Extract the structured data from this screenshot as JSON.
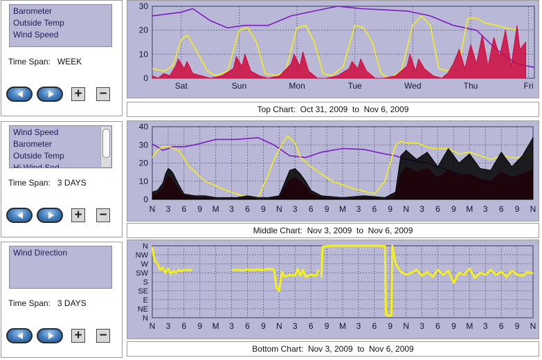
{
  "panels": [
    {
      "items": [
        "Barometer",
        "Outside Temp",
        "Wind Speed"
      ],
      "time_span_label": "Time Span:",
      "time_span_value": "WEEK",
      "has_scrollbar": false
    },
    {
      "items": [
        "Wind Speed",
        "Barometer",
        "Outside Temp",
        "Hi Wind Spd"
      ],
      "time_span_label": "Time Span:",
      "time_span_value": "3 DAYS",
      "has_scrollbar": true
    },
    {
      "items": [
        "Wind Direction"
      ],
      "time_span_label": "Time Span:",
      "time_span_value": "3 DAYS",
      "has_scrollbar": false
    }
  ],
  "buttons": {
    "zoom_in": "+",
    "zoom_out": "−"
  },
  "captions": {
    "top": "Top Chart:  Oct 31, 2009  to  Nov 6, 2009",
    "middle": "Middle Chart:  Nov 3, 2009  to  Nov 6, 2009",
    "bottom": "Bottom Chart:  Nov 3, 2009  to  Nov 6, 2009"
  },
  "colors": {
    "plot_bg": "#b9b8d6",
    "grid": "#5c5a80",
    "barometer": "#7a1bbf",
    "outside_temp": "#f4ef1e",
    "wind_speed": "#cc0a3e",
    "hi_wind": "#000000",
    "wind_dir": "#f4ef1e"
  },
  "chart_data": [
    {
      "id": "top",
      "type": "line",
      "title": "Top Chart:  Oct 31, 2009  to  Nov 6, 2009",
      "xlabel": "",
      "ylabel": "",
      "ylim": [
        0,
        30
      ],
      "xlim": [
        0,
        6.6
      ],
      "yticks": [
        "0",
        "10",
        "20",
        "30"
      ],
      "xticks": [
        {
          "x": 0.5,
          "label": "Sat"
        },
        {
          "x": 1.5,
          "label": "Sun"
        },
        {
          "x": 2.5,
          "label": "Mon"
        },
        {
          "x": 3.5,
          "label": "Tue"
        },
        {
          "x": 4.5,
          "label": "Wed"
        },
        {
          "x": 5.5,
          "label": "Thu"
        },
        {
          "x": 6.5,
          "label": "Fri"
        }
      ],
      "series": [
        {
          "name": "Barometer",
          "color": "#7a1bbf",
          "x": [
            0,
            0.5,
            0.7,
            1.0,
            1.3,
            1.6,
            2.0,
            2.4,
            2.8,
            3.2,
            3.6,
            4.0,
            4.4,
            4.8,
            5.0,
            5.2,
            5.6,
            5.9,
            6.1,
            6.3,
            6.6
          ],
          "y": [
            26,
            27.5,
            29,
            24,
            21,
            22,
            22,
            26,
            28,
            30,
            29,
            28.5,
            28,
            26,
            24,
            22,
            20,
            13,
            9,
            6,
            4.5
          ]
        },
        {
          "name": "Outside Temp",
          "color": "#f4ef1e",
          "x": [
            0,
            0.2,
            0.35,
            0.5,
            0.6,
            0.75,
            0.95,
            1.1,
            1.3,
            1.5,
            1.65,
            1.8,
            1.95,
            2.15,
            2.3,
            2.5,
            2.65,
            2.8,
            2.95,
            3.1,
            3.3,
            3.5,
            3.65,
            3.8,
            3.95,
            4.1,
            4.3,
            4.5,
            4.65,
            4.8,
            4.95,
            5.1,
            5.3,
            5.45,
            5.6,
            5.75,
            5.95,
            6.1,
            6.3
          ],
          "y": [
            4,
            3,
            5,
            16,
            18,
            12,
            3,
            1,
            3,
            20,
            21,
            15,
            2,
            1,
            3,
            21,
            22,
            15,
            2,
            1,
            5,
            22,
            21,
            15,
            2,
            0,
            3,
            22,
            26,
            22,
            4,
            3,
            6,
            25,
            25,
            23,
            22,
            21,
            20
          ]
        },
        {
          "name": "Wind Speed",
          "color": "#cc0a3e",
          "x": [
            0,
            0.1,
            0.2,
            0.3,
            0.4,
            0.45,
            0.55,
            0.6,
            0.7,
            0.85,
            1.0,
            1.2,
            1.4,
            1.45,
            1.55,
            1.6,
            1.7,
            1.85,
            2.0,
            2.2,
            2.4,
            2.45,
            2.55,
            2.6,
            2.7,
            2.85,
            3.0,
            3.2,
            3.4,
            3.45,
            3.55,
            3.6,
            3.7,
            3.85,
            4.0,
            4.2,
            4.4,
            4.45,
            4.55,
            4.6,
            4.7,
            4.85,
            5.0,
            5.1,
            5.2,
            5.3,
            5.4,
            5.5,
            5.6,
            5.7,
            5.8,
            5.9,
            6.0,
            6.1,
            6.2,
            6.3,
            6.35,
            6.45
          ],
          "y": [
            1,
            0,
            2,
            1,
            5,
            8,
            4,
            7,
            2,
            1,
            0,
            1,
            4,
            9,
            5,
            10,
            3,
            1,
            0,
            1,
            6,
            10,
            5,
            11,
            3,
            0,
            0,
            1,
            4,
            7,
            4,
            8,
            3,
            0,
            0,
            1,
            5,
            10,
            3,
            8,
            4,
            1,
            0,
            2,
            6,
            12,
            4,
            14,
            6,
            18,
            5,
            17,
            9,
            20,
            5,
            22,
            12,
            15
          ]
        }
      ]
    },
    {
      "id": "middle",
      "type": "line",
      "title": "Middle Chart:  Nov 3, 2009  to  Nov 6, 2009",
      "xlabel": "",
      "ylabel": "",
      "ylim": [
        0,
        40
      ],
      "xlim": [
        0,
        72
      ],
      "yticks": [
        "0",
        "10",
        "20",
        "30",
        "40"
      ],
      "xticks": [
        {
          "x": 0,
          "label": "N"
        },
        {
          "x": 3,
          "label": "3"
        },
        {
          "x": 6,
          "label": "6"
        },
        {
          "x": 9,
          "label": "9"
        },
        {
          "x": 12,
          "label": "M"
        },
        {
          "x": 15,
          "label": "3"
        },
        {
          "x": 18,
          "label": "6"
        },
        {
          "x": 21,
          "label": "9"
        },
        {
          "x": 24,
          "label": "N"
        },
        {
          "x": 27,
          "label": "3"
        },
        {
          "x": 30,
          "label": "6"
        },
        {
          "x": 33,
          "label": "9"
        },
        {
          "x": 36,
          "label": "M"
        },
        {
          "x": 39,
          "label": "3"
        },
        {
          "x": 42,
          "label": "6"
        },
        {
          "x": 45,
          "label": "9"
        },
        {
          "x": 48,
          "label": "N"
        },
        {
          "x": 51,
          "label": "3"
        },
        {
          "x": 54,
          "label": "6"
        },
        {
          "x": 57,
          "label": "9"
        },
        {
          "x": 60,
          "label": "M"
        },
        {
          "x": 63,
          "label": "3"
        },
        {
          "x": 66,
          "label": "6"
        },
        {
          "x": 69,
          "label": "9"
        },
        {
          "x": 72,
          "label": "N"
        }
      ],
      "series": [
        {
          "name": "Barometer",
          "color": "#7a1bbf",
          "x": [
            0,
            2,
            4,
            6,
            8,
            12,
            16,
            20,
            23,
            26,
            29,
            32,
            36,
            40,
            44,
            46,
            48,
            52,
            56,
            60,
            64,
            68,
            72
          ],
          "y": [
            30.5,
            27,
            29,
            29,
            30,
            33,
            33,
            34,
            30,
            24,
            23,
            26,
            28,
            27.5,
            25,
            24,
            22,
            20,
            16,
            12,
            9,
            7,
            6
          ]
        },
        {
          "name": "Outside Temp",
          "color": "#f4ef1e",
          "x": [
            0,
            1,
            2,
            3,
            4,
            5,
            7,
            10,
            14,
            17,
            20,
            22,
            23,
            24.5,
            25.5,
            27,
            28,
            30,
            34,
            38,
            42,
            44,
            45,
            46,
            47,
            48,
            49,
            50,
            53,
            56,
            58,
            60,
            62,
            64,
            66,
            68,
            70,
            72
          ],
          "y": [
            23,
            27,
            29,
            29,
            28,
            27,
            18,
            10,
            5,
            2,
            1,
            14,
            22,
            30,
            35,
            31,
            23,
            18,
            10,
            6,
            3,
            10,
            20,
            30,
            32,
            31,
            31,
            31,
            28,
            28,
            25,
            26,
            24,
            22,
            24,
            23,
            23,
            25
          ]
        },
        {
          "name": "Wind Speed",
          "color": "#cc0a3e",
          "x": [
            0,
            1,
            2,
            2.5,
            3,
            3.5,
            4,
            5,
            6,
            8,
            10,
            12,
            14,
            16,
            18,
            20,
            22,
            24,
            25,
            26,
            27,
            28,
            29,
            30,
            32,
            36,
            40,
            44,
            46,
            47,
            48,
            50,
            52,
            54,
            56,
            58,
            60,
            62,
            64,
            66,
            68,
            70,
            72
          ],
          "y": [
            2,
            3,
            6,
            10,
            13,
            12,
            10,
            5,
            2,
            1,
            1,
            0,
            0,
            0,
            1,
            0,
            0,
            1,
            6,
            11,
            12,
            10,
            7,
            3,
            1,
            0,
            1,
            0,
            2,
            14,
            18,
            15,
            17,
            12,
            16,
            13,
            14,
            11,
            10,
            15,
            12,
            14,
            16
          ]
        },
        {
          "name": "Hi Wind Spd",
          "color": "#000000",
          "x": [
            0,
            1,
            2,
            2.5,
            3,
            3.5,
            4,
            5,
            6,
            8,
            10,
            12,
            14,
            16,
            18,
            20,
            22,
            24,
            25,
            26,
            27,
            28,
            29,
            30,
            32,
            36,
            40,
            44,
            46,
            47,
            48,
            50,
            52,
            54,
            56,
            58,
            60,
            62,
            64,
            66,
            68,
            70,
            72
          ],
          "y": [
            4,
            5,
            9,
            14,
            17,
            16,
            14,
            8,
            3,
            2,
            2,
            1,
            1,
            1,
            2,
            1,
            1,
            2,
            9,
            16,
            17,
            14,
            10,
            5,
            2,
            1,
            2,
            1,
            4,
            24,
            27,
            22,
            26,
            18,
            28,
            20,
            25,
            17,
            16,
            26,
            18,
            24,
            34
          ]
        }
      ]
    },
    {
      "id": "bottom",
      "type": "line",
      "title": "Bottom Chart:  Nov 3, 2009  to  Nov 6, 2009",
      "xlabel": "",
      "ylabel": "",
      "ylim": [
        0,
        360
      ],
      "xlim": [
        0,
        72
      ],
      "yticks": [
        "N",
        "NE",
        "E",
        "SE",
        "S",
        "SW",
        "W",
        "NW",
        "N"
      ],
      "xticks": [
        {
          "x": 0,
          "label": "N"
        },
        {
          "x": 3,
          "label": "3"
        },
        {
          "x": 6,
          "label": "6"
        },
        {
          "x": 9,
          "label": "9"
        },
        {
          "x": 12,
          "label": "M"
        },
        {
          "x": 15,
          "label": "3"
        },
        {
          "x": 18,
          "label": "6"
        },
        {
          "x": 21,
          "label": "9"
        },
        {
          "x": 24,
          "label": "N"
        },
        {
          "x": 27,
          "label": "3"
        },
        {
          "x": 30,
          "label": "6"
        },
        {
          "x": 33,
          "label": "9"
        },
        {
          "x": 36,
          "label": "M"
        },
        {
          "x": 39,
          "label": "3"
        },
        {
          "x": 42,
          "label": "6"
        },
        {
          "x": 45,
          "label": "9"
        },
        {
          "x": 48,
          "label": "N"
        },
        {
          "x": 51,
          "label": "3"
        },
        {
          "x": 54,
          "label": "6"
        },
        {
          "x": 57,
          "label": "9"
        },
        {
          "x": 60,
          "label": "M"
        },
        {
          "x": 63,
          "label": "3"
        },
        {
          "x": 66,
          "label": "6"
        },
        {
          "x": 69,
          "label": "9"
        },
        {
          "x": 72,
          "label": "N"
        }
      ],
      "series": [
        {
          "name": "Wind Direction",
          "color": "#f4ef1e",
          "x": [
            0,
            0.3,
            0.6,
            1.0,
            1.5,
            2.0,
            2.5,
            3.0,
            3.5,
            4.0,
            4.5,
            5.0,
            5.5,
            6.0,
            6.5,
            7.0,
            7.5
          ],
          "y": [
            355,
            300,
            280,
            270,
            240,
            250,
            225,
            245,
            220,
            235,
            225,
            240,
            232,
            240,
            237,
            240,
            238
          ]
        },
        {
          "name": "Wind Direction",
          "color": "#f4ef1e",
          "x": [
            15,
            16,
            17,
            18,
            19,
            20,
            21,
            22,
            23,
            23.5,
            24,
            24.5,
            25,
            26,
            27,
            27.5,
            28,
            28.5,
            29,
            30,
            31,
            31.5
          ],
          "y": [
            238,
            240,
            237,
            241,
            238,
            242,
            238,
            245,
            240,
            150,
            135,
            230,
            205,
            215,
            210,
            245,
            210,
            240,
            205,
            215,
            210,
            240
          ]
        },
        {
          "name": "Wind Direction",
          "color": "#f4ef1e",
          "x": [
            32,
            32.2,
            34,
            36,
            38,
            40,
            42,
            43,
            44,
            44.2,
            44.8,
            45.2,
            45.4,
            46,
            47,
            48,
            49,
            50,
            51,
            52,
            53,
            54,
            55,
            56,
            57,
            58,
            59,
            60,
            61,
            62,
            63,
            64,
            65,
            66,
            67,
            68,
            69,
            70,
            71,
            72
          ],
          "y": [
            200,
            355,
            360,
            360,
            360,
            360,
            360,
            360,
            358,
            15,
            10,
            12,
            360,
            270,
            230,
            215,
            225,
            240,
            210,
            230,
            205,
            240,
            215,
            235,
            175,
            225,
            215,
            245,
            200,
            225,
            215,
            240,
            215,
            230,
            205,
            235,
            215,
            210,
            230,
            220
          ]
        }
      ]
    }
  ]
}
